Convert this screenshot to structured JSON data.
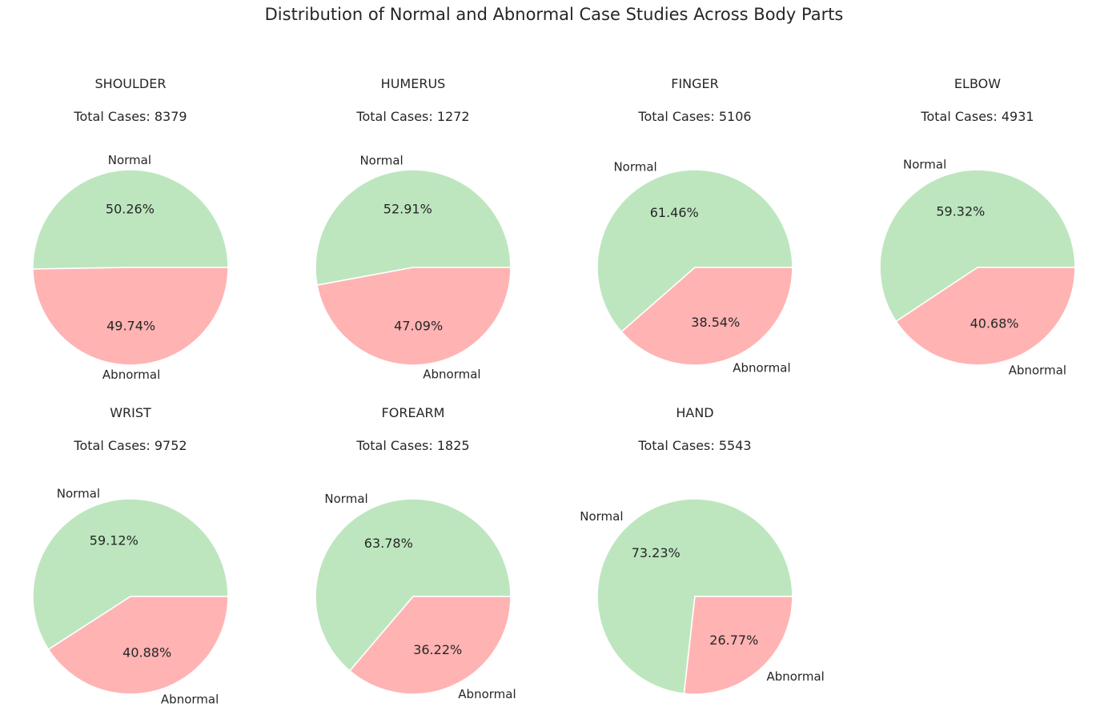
{
  "chart_data": {
    "type": "pie",
    "title": "Distribution of Normal and Abnormal Case Studies Across Body Parts",
    "categories": [
      "Normal",
      "Abnormal"
    ],
    "colors": {
      "Normal": "#bde6bf",
      "Abnormal": "#ffb3b3"
    },
    "total_prefix": "Total Cases: ",
    "panels": [
      {
        "name": "SHOULDER",
        "total": 8379,
        "values": [
          50.26,
          49.74
        ],
        "labels": [
          "50.26%",
          "49.74%"
        ]
      },
      {
        "name": "HUMERUS",
        "total": 1272,
        "values": [
          52.91,
          47.09
        ],
        "labels": [
          "52.91%",
          "47.09%"
        ]
      },
      {
        "name": "FINGER",
        "total": 5106,
        "values": [
          61.46,
          38.54
        ],
        "labels": [
          "61.46%",
          "38.54%"
        ]
      },
      {
        "name": "ELBOW",
        "total": 4931,
        "values": [
          59.32,
          40.68
        ],
        "labels": [
          "59.32%",
          "40.68%"
        ]
      },
      {
        "name": "WRIST",
        "total": 9752,
        "values": [
          59.12,
          40.88
        ],
        "labels": [
          "59.12%",
          "40.88%"
        ]
      },
      {
        "name": "FOREARM",
        "total": 1825,
        "values": [
          63.78,
          36.22
        ],
        "labels": [
          "63.78%",
          "36.22%"
        ]
      },
      {
        "name": "HAND",
        "total": 5543,
        "values": [
          73.23,
          26.77
        ],
        "labels": [
          "73.23%",
          "26.77%"
        ]
      }
    ]
  }
}
